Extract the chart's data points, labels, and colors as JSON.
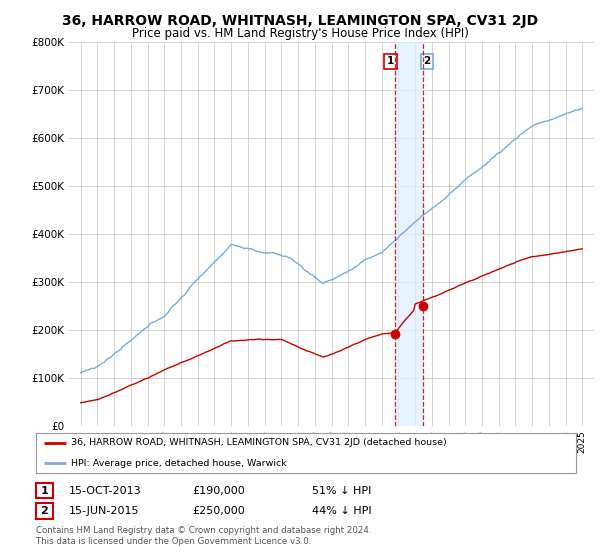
{
  "title": "36, HARROW ROAD, WHITNASH, LEAMINGTON SPA, CV31 2JD",
  "subtitle": "Price paid vs. HM Land Registry's House Price Index (HPI)",
  "ylim": [
    0,
    800000
  ],
  "yticks": [
    0,
    100000,
    200000,
    300000,
    400000,
    500000,
    600000,
    700000,
    800000
  ],
  "ytick_labels": [
    "£0",
    "£100K",
    "£200K",
    "£300K",
    "£400K",
    "£500K",
    "£600K",
    "£700K",
    "£800K"
  ],
  "hpi_color": "#7aabdb",
  "price_color": "#cc0000",
  "marker_color": "#cc0000",
  "vline_color": "#cc0000",
  "vline_color2": "#aaccee",
  "shade_color": "#ddeeff",
  "transaction1_date": 2013.79,
  "transaction1_price": 190000,
  "transaction2_date": 2015.46,
  "transaction2_price": 250000,
  "legend_line1": "36, HARROW ROAD, WHITNASH, LEAMINGTON SPA, CV31 2JD (detached house)",
  "legend_line2": "HPI: Average price, detached house, Warwick",
  "table_row1": [
    "1",
    "15-OCT-2013",
    "£190,000",
    "51% ↓ HPI"
  ],
  "table_row2": [
    "2",
    "15-JUN-2015",
    "£250,000",
    "44% ↓ HPI"
  ],
  "footer": "Contains HM Land Registry data © Crown copyright and database right 2024.\nThis data is licensed under the Open Government Licence v3.0.",
  "bg_color": "#ffffff",
  "grid_color": "#cccccc",
  "title_fontsize": 10,
  "subtitle_fontsize": 8.5,
  "tick_fontsize": 7.5
}
